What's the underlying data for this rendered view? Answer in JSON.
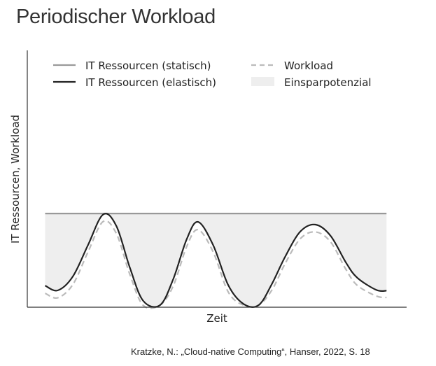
{
  "page": {
    "title": "Periodischer Workload",
    "source": "Kratzke, N.: „Cloud-native Computing“, Hanser, 2022, S. 18"
  },
  "chart_data": {
    "type": "line",
    "xlabel": "Zeit",
    "ylabel": "IT Ressourcen, Workload",
    "xlim": [
      0,
      1
    ],
    "ylim": [
      0,
      1
    ],
    "ticks": false,
    "grid": false,
    "legend_position": "top",
    "series": [
      {
        "name": "IT Ressourcen (statisch)",
        "color": "#999999",
        "style": "solid",
        "points": [
          [
            0.047,
            0.603
          ],
          [
            0.947,
            0.603
          ]
        ]
      },
      {
        "name": "IT Ressourcen (elastisch)",
        "color": "#222222",
        "style": "solid",
        "points": [
          [
            0.047,
            0.128
          ],
          [
            0.08,
            0.097
          ],
          [
            0.12,
            0.188
          ],
          [
            0.16,
            0.395
          ],
          [
            0.2,
            0.597
          ],
          [
            0.235,
            0.52
          ],
          [
            0.27,
            0.25
          ],
          [
            0.305,
            0.03
          ],
          [
            0.35,
            0.0
          ],
          [
            0.385,
            0.173
          ],
          [
            0.42,
            0.432
          ],
          [
            0.45,
            0.548
          ],
          [
            0.49,
            0.395
          ],
          [
            0.53,
            0.13
          ],
          [
            0.57,
            0.008
          ],
          [
            0.61,
            0.0
          ],
          [
            0.645,
            0.14
          ],
          [
            0.68,
            0.32
          ],
          [
            0.72,
            0.485
          ],
          [
            0.76,
            0.53
          ],
          [
            0.8,
            0.455
          ],
          [
            0.84,
            0.28
          ],
          [
            0.87,
            0.18
          ],
          [
            0.92,
            0.1
          ],
          [
            0.947,
            0.095
          ]
        ]
      },
      {
        "name": "Workload",
        "color": "#bbbbbb",
        "style": "dashed",
        "points": [
          [
            0.047,
            0.078
          ],
          [
            0.08,
            0.048
          ],
          [
            0.12,
            0.135
          ],
          [
            0.16,
            0.35
          ],
          [
            0.2,
            0.55
          ],
          [
            0.235,
            0.47
          ],
          [
            0.27,
            0.205
          ],
          [
            0.305,
            0.0
          ],
          [
            0.35,
            0.0
          ],
          [
            0.385,
            0.128
          ],
          [
            0.42,
            0.384
          ],
          [
            0.45,
            0.497
          ],
          [
            0.49,
            0.35
          ],
          [
            0.53,
            0.085
          ],
          [
            0.57,
            0.0
          ],
          [
            0.61,
            0.0
          ],
          [
            0.645,
            0.1
          ],
          [
            0.68,
            0.275
          ],
          [
            0.72,
            0.438
          ],
          [
            0.76,
            0.482
          ],
          [
            0.8,
            0.415
          ],
          [
            0.84,
            0.235
          ],
          [
            0.87,
            0.13
          ],
          [
            0.92,
            0.06
          ],
          [
            0.947,
            0.05
          ]
        ]
      }
    ],
    "shaded_area": {
      "name": "Einsparpotenzial",
      "color": "#eeeeee",
      "between": [
        "IT Ressourcen (statisch)",
        "IT Ressourcen (elastisch)"
      ]
    }
  }
}
